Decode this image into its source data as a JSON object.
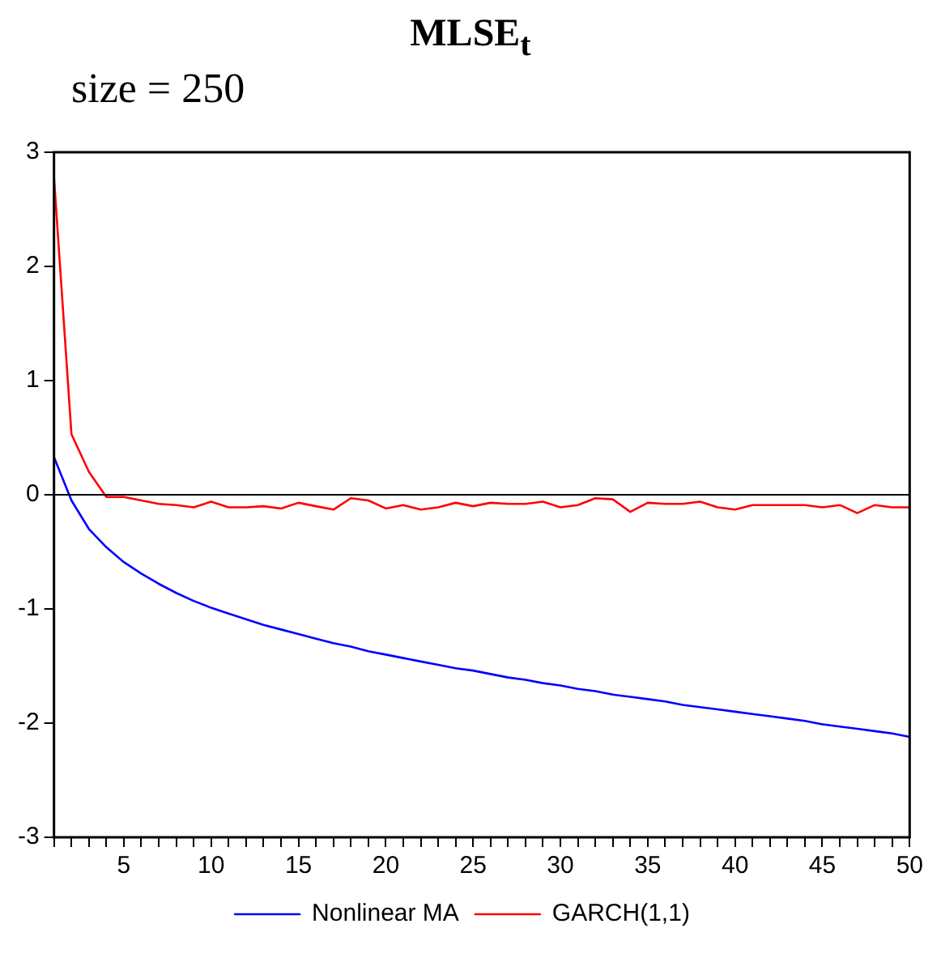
{
  "chart_data": {
    "type": "line",
    "title": "MLSE$_{t}$",
    "subtitle": "size = 250",
    "x": [
      1,
      2,
      3,
      4,
      5,
      6,
      7,
      8,
      9,
      10,
      11,
      12,
      13,
      14,
      15,
      16,
      17,
      18,
      19,
      20,
      21,
      22,
      23,
      24,
      25,
      26,
      27,
      28,
      29,
      30,
      31,
      32,
      33,
      34,
      35,
      36,
      37,
      38,
      39,
      40,
      41,
      42,
      43,
      44,
      45,
      46,
      47,
      48,
      49,
      50
    ],
    "series": [
      {
        "name": "Nonlinear MA",
        "color": "#0000ff",
        "values": [
          0.33,
          -0.05,
          -0.3,
          -0.46,
          -0.59,
          -0.69,
          -0.78,
          -0.86,
          -0.93,
          -0.99,
          -1.04,
          -1.09,
          -1.14,
          -1.18,
          -1.22,
          -1.26,
          -1.3,
          -1.33,
          -1.37,
          -1.4,
          -1.43,
          -1.46,
          -1.49,
          -1.52,
          -1.54,
          -1.57,
          -1.6,
          -1.62,
          -1.65,
          -1.67,
          -1.7,
          -1.72,
          -1.75,
          -1.77,
          -1.79,
          -1.81,
          -1.84,
          -1.86,
          -1.88,
          -1.9,
          -1.92,
          -1.94,
          -1.96,
          -1.98,
          -2.01,
          -2.03,
          -2.05,
          -2.07,
          -2.09,
          -2.12
        ]
      },
      {
        "name": "GARCH(1,1)",
        "color": "#ff0000",
        "values": [
          2.78,
          0.53,
          0.2,
          -0.02,
          -0.02,
          -0.05,
          -0.08,
          -0.09,
          -0.11,
          -0.06,
          -0.11,
          -0.11,
          -0.1,
          -0.12,
          -0.07,
          -0.1,
          -0.13,
          -0.03,
          -0.05,
          -0.12,
          -0.09,
          -0.13,
          -0.11,
          -0.07,
          -0.1,
          -0.07,
          -0.08,
          -0.08,
          -0.06,
          -0.11,
          -0.09,
          -0.03,
          -0.04,
          -0.15,
          -0.07,
          -0.08,
          -0.08,
          -0.06,
          -0.11,
          -0.13,
          -0.09,
          -0.09,
          -0.09,
          -0.09,
          -0.11,
          -0.09,
          -0.16,
          -0.09,
          -0.11,
          -0.11
        ]
      }
    ],
    "xlim": [
      1,
      50
    ],
    "xticks": [
      {
        "value": 1,
        "label": null
      },
      {
        "value": 2,
        "label": null
      },
      {
        "value": 3,
        "label": null
      },
      {
        "value": 4,
        "label": null
      },
      5,
      {
        "value": 6,
        "label": null
      },
      {
        "value": 7,
        "label": null
      },
      {
        "value": 8,
        "label": null
      },
      {
        "value": 9,
        "label": null
      },
      10,
      {
        "value": 11,
        "label": null
      },
      {
        "value": 12,
        "label": null
      },
      {
        "value": 13,
        "label": null
      },
      {
        "value": 14,
        "label": null
      },
      15,
      {
        "value": 16,
        "label": null
      },
      {
        "value": 17,
        "label": null
      },
      {
        "value": 18,
        "label": null
      },
      {
        "value": 19,
        "label": null
      },
      20,
      {
        "value": 21,
        "label": null
      },
      {
        "value": 22,
        "label": null
      },
      {
        "value": 23,
        "label": null
      },
      {
        "value": 24,
        "label": null
      },
      25,
      {
        "value": 26,
        "label": null
      },
      {
        "value": 27,
        "label": null
      },
      {
        "value": 28,
        "label": null
      },
      {
        "value": 29,
        "label": null
      },
      30,
      {
        "value": 31,
        "label": null
      },
      {
        "value": 32,
        "label": null
      },
      {
        "value": 33,
        "label": null
      },
      {
        "value": 34,
        "label": null
      },
      35,
      {
        "value": 36,
        "label": null
      },
      {
        "value": 37,
        "label": null
      },
      {
        "value": 38,
        "label": null
      },
      {
        "value": 39,
        "label": null
      },
      40,
      {
        "value": 41,
        "label": null
      },
      {
        "value": 42,
        "label": null
      },
      {
        "value": 43,
        "label": null
      },
      {
        "value": 44,
        "label": null
      },
      45,
      {
        "value": 46,
        "label": null
      },
      {
        "value": 47,
        "label": null
      },
      {
        "value": 48,
        "label": null
      },
      {
        "value": 49,
        "label": null
      },
      50
    ],
    "ylim": [
      -3,
      3
    ],
    "yticks": [
      -3,
      -2,
      -1,
      0,
      1,
      2,
      3
    ],
    "ref_lines": [
      {
        "axis": "y",
        "value": 0,
        "color": "#000000"
      }
    ],
    "grid": false,
    "legend": "bottom",
    "marker": "none",
    "line_style": "solid"
  }
}
